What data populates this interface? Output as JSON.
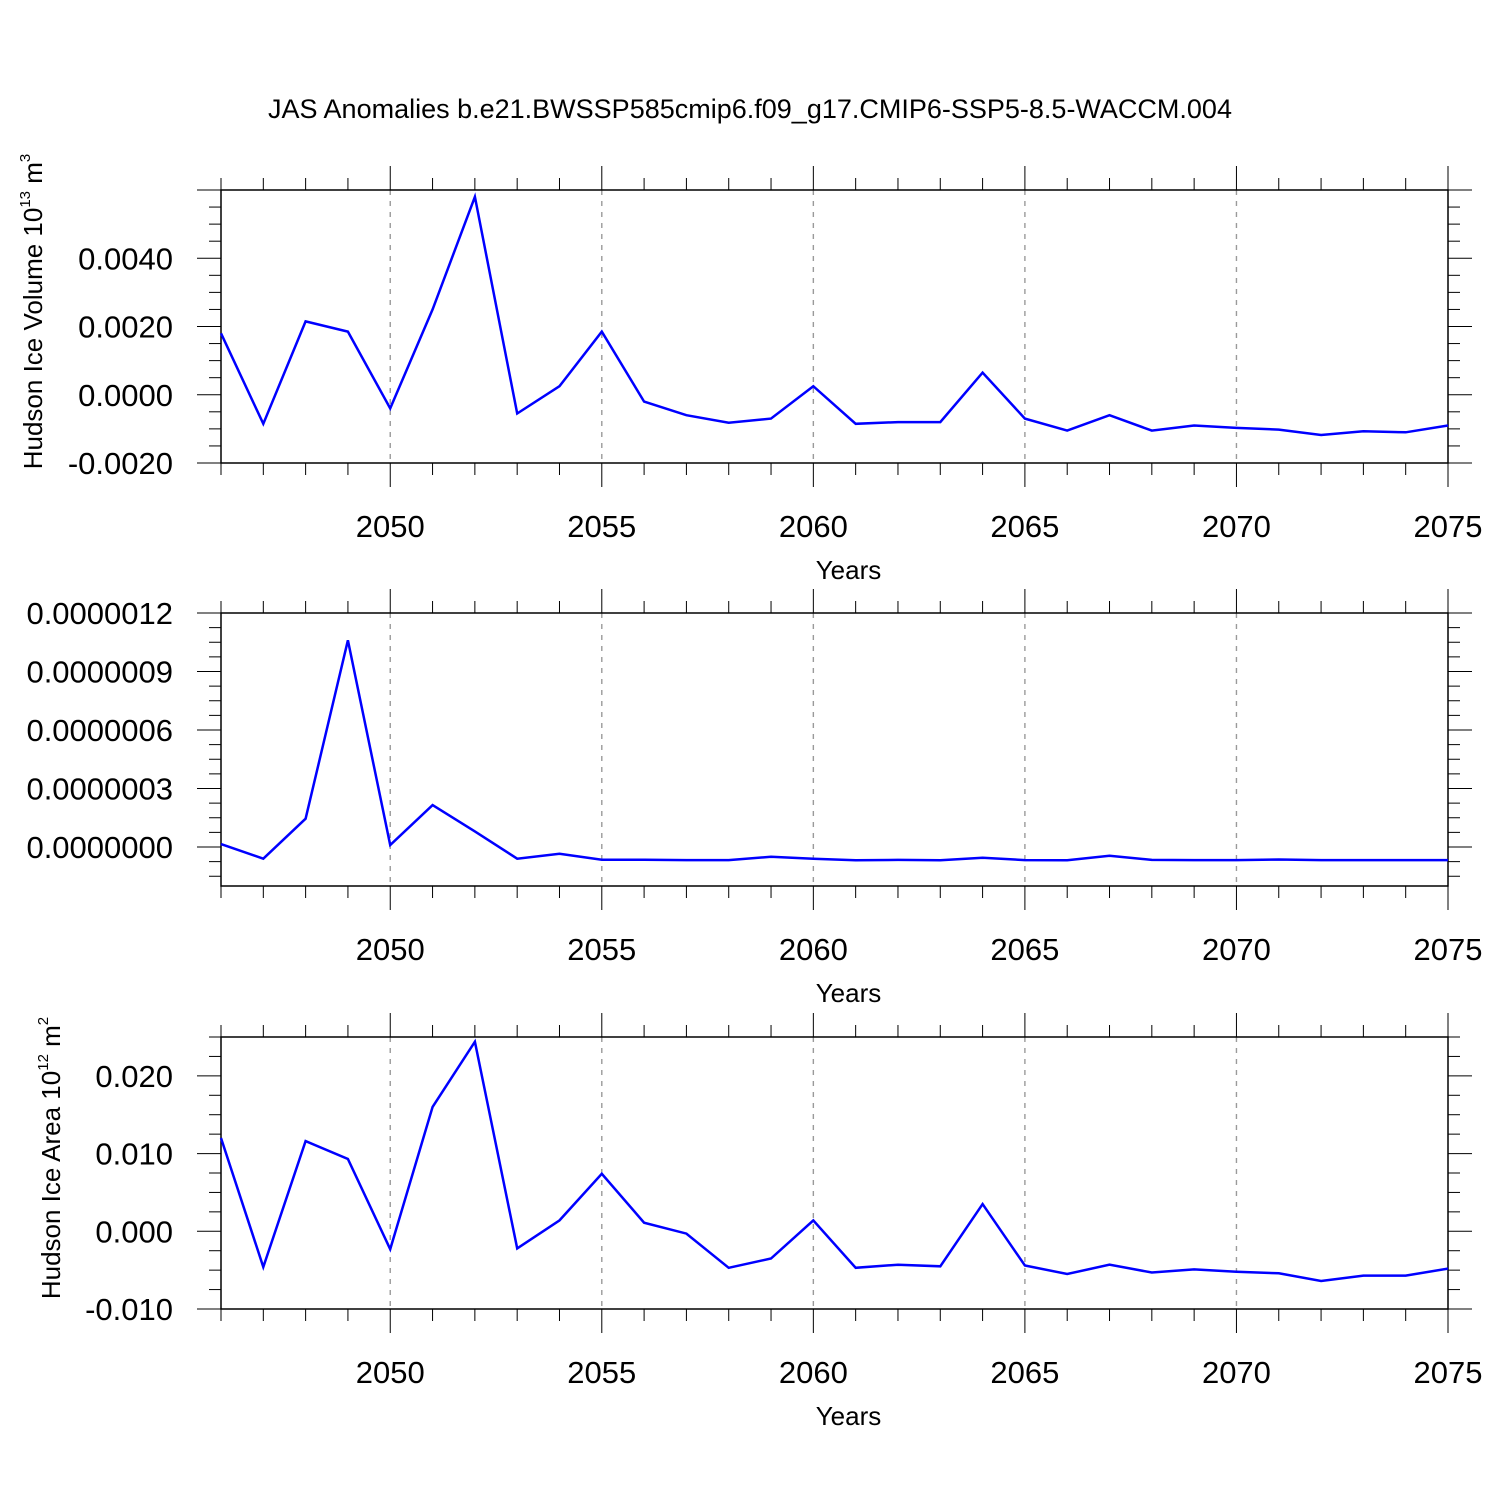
{
  "chart_data": [
    {
      "type": "line",
      "title": "JAS Anomalies b.e21.BWSSP585cmip6.f09_g17.CMIP6-SSP5-8.5-WACCM.004",
      "xlabel": "Years",
      "ylabel": {
        "text": "Hudson Ice Volume 10",
        "exponent": "13",
        "unit": " m",
        "unit_exponent": "3"
      },
      "xlim": [
        2046,
        2075
      ],
      "ylim": [
        -0.002,
        0.006
      ],
      "x_ticks": [
        2050,
        2055,
        2060,
        2065,
        2070,
        2075
      ],
      "y_ticks": [
        -0.002,
        0.0,
        0.002,
        0.004
      ],
      "y_tick_labels": [
        "-0.0020",
        "0.0000",
        "0.0020",
        "0.0040"
      ],
      "grid": "vertical dashed at major x ticks",
      "color": "#0000ff",
      "series": [
        {
          "x": [
            2046,
            2047,
            2048,
            2049,
            2050,
            2051,
            2052,
            2053,
            2054,
            2055,
            2056,
            2057,
            2058,
            2059,
            2060,
            2061,
            2062,
            2063,
            2064,
            2065,
            2066,
            2067,
            2068,
            2069,
            2070,
            2071,
            2072,
            2073,
            2074,
            2075
          ],
          "values": [
            0.0018,
            -0.00085,
            0.00215,
            0.00185,
            -0.0004,
            0.0025,
            0.0058,
            -0.00055,
            0.00025,
            0.00185,
            -0.0002,
            -0.0006,
            -0.00082,
            -0.0007,
            0.00025,
            -0.00085,
            -0.0008,
            -0.0008,
            0.00065,
            -0.0007,
            -0.00105,
            -0.0006,
            -0.00105,
            -0.0009,
            -0.00097,
            -0.00102,
            -0.00118,
            -0.00107,
            -0.0011,
            -0.0009
          ]
        }
      ]
    },
    {
      "type": "line",
      "xlabel": "Years",
      "ylabel": "",
      "xlim": [
        2046,
        2075
      ],
      "ylim": [
        -2e-07,
        1.2e-06
      ],
      "x_ticks": [
        2050,
        2055,
        2060,
        2065,
        2070,
        2075
      ],
      "y_ticks": [
        0.0,
        3e-07,
        6e-07,
        9e-07,
        1.2e-06
      ],
      "y_tick_labels": [
        "0.0000000",
        "0.0000003",
        "0.0000006",
        "0.0000009",
        "0.0000012"
      ],
      "grid": "vertical dashed at major x ticks",
      "color": "#0000ff",
      "series": [
        {
          "x": [
            2046,
            2047,
            2048,
            2049,
            2050,
            2051,
            2052,
            2053,
            2054,
            2055,
            2056,
            2057,
            2058,
            2059,
            2060,
            2061,
            2062,
            2063,
            2064,
            2065,
            2066,
            2067,
            2068,
            2069,
            2070,
            2071,
            2072,
            2073,
            2074,
            2075
          ],
          "values": [
            1.5e-08,
            -6e-08,
            1.45e-07,
            1.06e-06,
            1e-08,
            2.15e-07,
            8e-08,
            -6e-08,
            -3.5e-08,
            -6.5e-08,
            -6.5e-08,
            -6.7e-08,
            -6.7e-08,
            -5e-08,
            -6e-08,
            -6.8e-08,
            -6.6e-08,
            -6.8e-08,
            -5.5e-08,
            -6.7e-08,
            -6.8e-08,
            -4.5e-08,
            -6.6e-08,
            -6.7e-08,
            -6.7e-08,
            -6.4e-08,
            -6.7e-08,
            -6.7e-08,
            -6.7e-08,
            -6.7e-08
          ]
        }
      ]
    },
    {
      "type": "line",
      "xlabel": "Years",
      "ylabel": {
        "text": "Hudson Ice Area 10",
        "exponent": "12",
        "unit": " m",
        "unit_exponent": "2"
      },
      "xlim": [
        2046,
        2075
      ],
      "ylim": [
        -0.01,
        0.025
      ],
      "x_ticks": [
        2050,
        2055,
        2060,
        2065,
        2070,
        2075
      ],
      "y_ticks": [
        -0.01,
        0.0,
        0.01,
        0.02
      ],
      "y_tick_labels": [
        "-0.010",
        "0.000",
        "0.010",
        "0.020"
      ],
      "grid": "vertical dashed at major x ticks",
      "color": "#0000ff",
      "series": [
        {
          "x": [
            2046,
            2047,
            2048,
            2049,
            2050,
            2051,
            2052,
            2053,
            2054,
            2055,
            2056,
            2057,
            2058,
            2059,
            2060,
            2061,
            2062,
            2063,
            2064,
            2065,
            2066,
            2067,
            2068,
            2069,
            2070,
            2071,
            2072,
            2073,
            2074,
            2075
          ],
          "values": [
            0.012,
            -0.0046,
            0.0116,
            0.0093,
            -0.0023,
            0.016,
            0.0244,
            -0.0022,
            0.0014,
            0.0074,
            0.0011,
            -0.0003,
            -0.0047,
            -0.0035,
            0.0014,
            -0.0047,
            -0.0043,
            -0.0045,
            0.0035,
            -0.0044,
            -0.0055,
            -0.0043,
            -0.0053,
            -0.0049,
            -0.0052,
            -0.0054,
            -0.0064,
            -0.0057,
            -0.0057,
            -0.0048
          ]
        }
      ]
    }
  ]
}
